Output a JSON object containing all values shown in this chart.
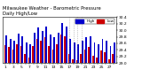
{
  "title": "Milwaukee Weather - Barometric Pressure",
  "subtitle": "Daily High/Low",
  "background_color": "#ffffff",
  "plot_bg": "#ffffff",
  "dashed_line_indices": [
    16,
    17,
    18,
    19
  ],
  "days": [
    1,
    2,
    3,
    4,
    5,
    6,
    7,
    8,
    9,
    10,
    11,
    12,
    13,
    14,
    15,
    16,
    17,
    18,
    19,
    20,
    21,
    22,
    23,
    24,
    25,
    26,
    27,
    28
  ],
  "highs": [
    29.85,
    29.72,
    29.68,
    29.9,
    29.82,
    29.62,
    29.56,
    29.92,
    30.08,
    29.97,
    30.12,
    29.88,
    29.78,
    29.92,
    30.22,
    30.12,
    29.72,
    29.62,
    29.57,
    29.67,
    29.78,
    29.82,
    29.62,
    29.57,
    29.72,
    29.67,
    29.52,
    29.62
  ],
  "lows": [
    29.55,
    29.48,
    29.42,
    29.58,
    29.52,
    29.28,
    29.18,
    29.52,
    29.72,
    29.68,
    29.78,
    29.52,
    29.42,
    29.58,
    29.88,
    29.82,
    29.28,
    29.12,
    29.08,
    29.28,
    29.42,
    29.48,
    29.22,
    29.18,
    29.38,
    29.32,
    29.12,
    29.28
  ],
  "high_color": "#0000cc",
  "low_color": "#cc0000",
  "ylim_min": 29.0,
  "ylim_max": 30.4,
  "ytick_vals": [
    29.0,
    29.2,
    29.4,
    29.6,
    29.8,
    30.0,
    30.2,
    30.4
  ],
  "ytick_labels": [
    "29.0",
    "29.2",
    "29.4",
    "29.6",
    "29.8",
    "30.0",
    "30.2",
    "30.4"
  ],
  "tick_fontsize": 3.2,
  "title_fontsize": 3.8,
  "legend_fontsize": 3.0,
  "bar_width": 0.38
}
